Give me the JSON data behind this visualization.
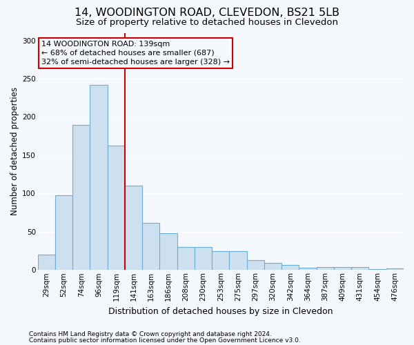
{
  "title": "14, WOODINGTON ROAD, CLEVEDON, BS21 5LB",
  "subtitle": "Size of property relative to detached houses in Clevedon",
  "xlabel": "Distribution of detached houses by size in Clevedon",
  "ylabel": "Number of detached properties",
  "categories": [
    "29sqm",
    "52sqm",
    "74sqm",
    "96sqm",
    "119sqm",
    "141sqm",
    "163sqm",
    "186sqm",
    "208sqm",
    "230sqm",
    "253sqm",
    "275sqm",
    "297sqm",
    "320sqm",
    "342sqm",
    "364sqm",
    "387sqm",
    "409sqm",
    "431sqm",
    "454sqm",
    "476sqm"
  ],
  "values": [
    20,
    98,
    190,
    242,
    163,
    110,
    62,
    48,
    30,
    30,
    25,
    25,
    13,
    9,
    7,
    3,
    4,
    4,
    4,
    1,
    2
  ],
  "bar_color": "#cde0ef",
  "bar_edge_color": "#6aaed6",
  "vline_color": "#cc0000",
  "vline_x": 4.5,
  "annotation_line1": "14 WOODINGTON ROAD: 139sqm",
  "annotation_line2": "← 68% of detached houses are smaller (687)",
  "annotation_line3": "32% of semi-detached houses are larger (328) →",
  "annotation_box_color": "#cc0000",
  "ylim": [
    0,
    310
  ],
  "yticks": [
    0,
    50,
    100,
    150,
    200,
    250,
    300
  ],
  "footer1": "Contains HM Land Registry data © Crown copyright and database right 2024.",
  "footer2": "Contains public sector information licensed under the Open Government Licence v3.0.",
  "bg_color": "#f4f7fb",
  "plot_bg_color": "#f4f7fb",
  "grid_color": "#ffffff",
  "title_fontsize": 11.5,
  "subtitle_fontsize": 9.5,
  "xlabel_fontsize": 9,
  "ylabel_fontsize": 8.5,
  "tick_fontsize": 7.5,
  "annotation_fontsize": 8,
  "footer_fontsize": 6.5
}
